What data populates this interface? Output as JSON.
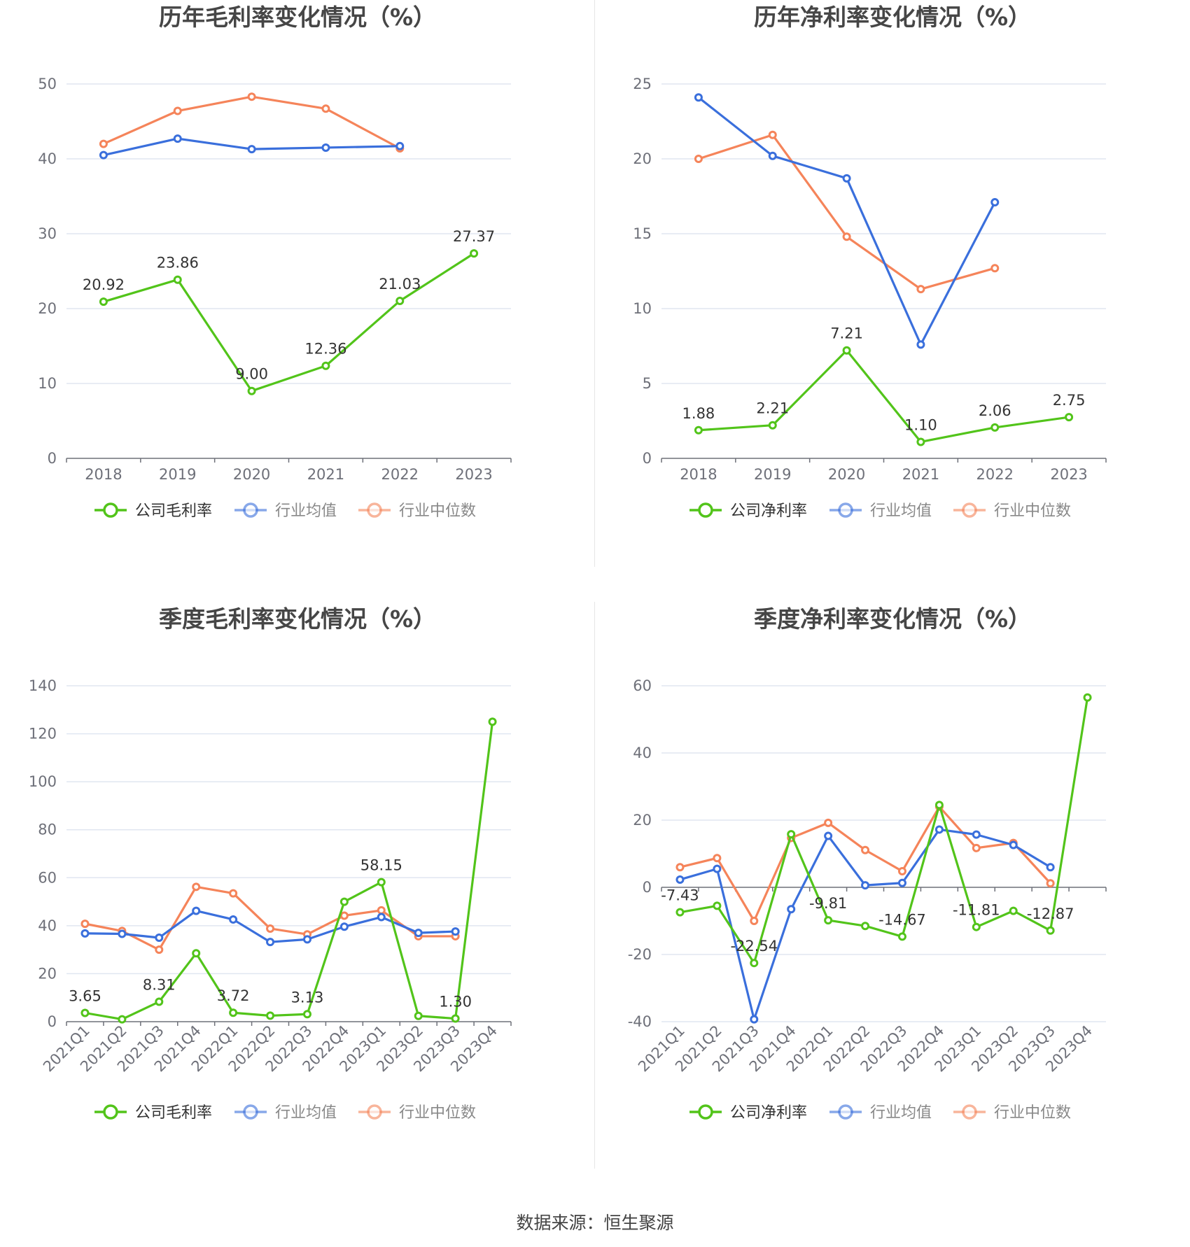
{
  "source": "数据来源：恒生聚源",
  "colors": {
    "company": "#52c41a",
    "avg": "#3a6fdc",
    "median": "#f5845a"
  },
  "chart_data": [
    {
      "type": "line",
      "title": "历年毛利率变化情况（%）",
      "categories": [
        "2018",
        "2019",
        "2020",
        "2021",
        "2022",
        "2023"
      ],
      "ylim": [
        0,
        50
      ],
      "yticks": [
        0,
        10,
        20,
        30,
        40,
        50
      ],
      "xlabel": "",
      "ylabel": "",
      "legend": "bottom",
      "series": [
        {
          "name": "公司毛利率",
          "key": "company",
          "values": [
            20.92,
            23.86,
            9.0,
            12.36,
            21.03,
            27.37
          ],
          "labels": [
            "20.92",
            "23.86",
            "9.00",
            "12.36",
            "21.03",
            "27.37"
          ]
        },
        {
          "name": "行业均值",
          "key": "avg",
          "values": [
            40.5,
            42.7,
            41.3,
            41.5,
            41.7,
            null
          ]
        },
        {
          "name": "行业中位数",
          "key": "median",
          "values": [
            42.0,
            46.4,
            48.3,
            46.7,
            41.4,
            null
          ]
        }
      ]
    },
    {
      "type": "line",
      "title": "历年净利率变化情况（%）",
      "categories": [
        "2018",
        "2019",
        "2020",
        "2021",
        "2022",
        "2023"
      ],
      "ylim": [
        0,
        25
      ],
      "yticks": [
        0,
        5,
        10,
        15,
        20,
        25
      ],
      "xlabel": "",
      "ylabel": "",
      "legend": "bottom",
      "series": [
        {
          "name": "公司净利率",
          "key": "company",
          "values": [
            1.88,
            2.21,
            7.21,
            1.1,
            2.06,
            2.75
          ],
          "labels": [
            "1.88",
            "2.21",
            "7.21",
            "1.10",
            "2.06",
            "2.75"
          ]
        },
        {
          "name": "行业均值",
          "key": "avg",
          "values": [
            24.1,
            20.2,
            18.7,
            7.6,
            17.1,
            null
          ]
        },
        {
          "name": "行业中位数",
          "key": "median",
          "values": [
            20.0,
            21.6,
            14.8,
            11.3,
            12.7,
            null
          ]
        }
      ]
    },
    {
      "type": "line",
      "title": "季度毛利率变化情况（%）",
      "categories": [
        "2021Q1",
        "2021Q2",
        "2021Q3",
        "2021Q4",
        "2022Q1",
        "2022Q2",
        "2022Q3",
        "2022Q4",
        "2023Q1",
        "2023Q2",
        "2023Q3",
        "2023Q4"
      ],
      "ylim": [
        0,
        140
      ],
      "yticks": [
        0,
        20,
        40,
        60,
        80,
        100,
        120,
        140
      ],
      "xlabel": "",
      "ylabel": "",
      "legend": "bottom",
      "series": [
        {
          "name": "公司毛利率",
          "key": "company",
          "values": [
            3.65,
            1.0,
            8.31,
            28.5,
            3.72,
            2.5,
            3.13,
            50.0,
            58.15,
            2.4,
            1.3,
            125.0
          ],
          "labels": [
            "3.65",
            "",
            "8.31",
            "",
            "3.72",
            "",
            "3.13",
            "",
            "58.15",
            "",
            "1.30",
            ""
          ]
        },
        {
          "name": "行业均值",
          "key": "avg",
          "values": [
            36.8,
            36.6,
            35.0,
            46.2,
            42.6,
            33.2,
            34.3,
            39.6,
            43.6,
            37.0,
            37.6,
            null
          ]
        },
        {
          "name": "行业中位数",
          "key": "median",
          "values": [
            40.8,
            37.8,
            30.0,
            56.2,
            53.5,
            38.8,
            36.4,
            44.2,
            46.4,
            35.6,
            35.6,
            null
          ]
        }
      ]
    },
    {
      "type": "line",
      "title": "季度净利率变化情况（%）",
      "categories": [
        "2021Q1",
        "2021Q2",
        "2021Q3",
        "2021Q4",
        "2022Q1",
        "2022Q2",
        "2022Q3",
        "2022Q4",
        "2023Q1",
        "2023Q2",
        "2023Q3",
        "2023Q4"
      ],
      "ylim": [
        -40,
        60
      ],
      "yticks": [
        -40,
        -20,
        0,
        20,
        40,
        60
      ],
      "xlabel": "",
      "ylabel": "",
      "legend": "bottom",
      "series": [
        {
          "name": "公司净利率",
          "key": "company",
          "values": [
            -7.43,
            -5.5,
            -22.54,
            15.8,
            -9.81,
            -11.5,
            -14.67,
            24.5,
            -11.81,
            -7.0,
            -12.87,
            56.5
          ],
          "labels": [
            "-7.43",
            "",
            "-22.54",
            "",
            "-9.81",
            "",
            "-14.67",
            "",
            "-11.81",
            "",
            "-12.87",
            ""
          ]
        },
        {
          "name": "行业均值",
          "key": "avg",
          "values": [
            2.3,
            5.5,
            -39.3,
            -6.5,
            15.3,
            0.6,
            1.3,
            17.2,
            15.7,
            12.6,
            6.0,
            null
          ]
        },
        {
          "name": "行业中位数",
          "key": "median",
          "values": [
            6.0,
            8.7,
            -10.0,
            14.7,
            19.2,
            11.1,
            4.8,
            24.0,
            11.7,
            13.2,
            1.2,
            null
          ]
        }
      ]
    }
  ]
}
